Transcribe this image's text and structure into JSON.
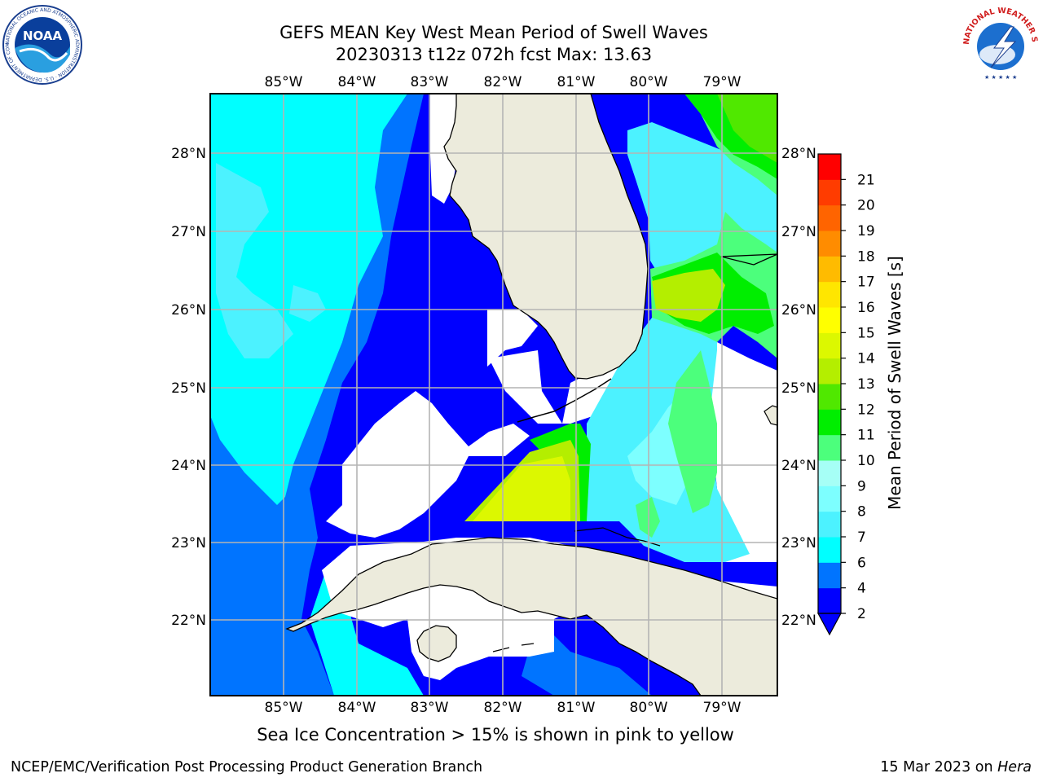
{
  "header": {
    "title_line1": "GEFS MEAN Key West Mean Period of Swell Waves",
    "title_line2": "20230313 t12z 072h fcst   Max: 13.63"
  },
  "logos": {
    "left": "NOAA",
    "left_ring": "NATIONAL OCEANIC AND ATMOSPHERIC ADMINISTRATION · U.S. DEPARTMENT OF COMMERCE ·",
    "right_ring": "NATIONAL WEATHER SERVICE"
  },
  "map": {
    "lon_labels": [
      "85°W",
      "84°W",
      "83°W",
      "82°W",
      "81°W",
      "80°W",
      "79°W"
    ],
    "lat_labels": [
      "28°N",
      "27°N",
      "26°N",
      "25°N",
      "24°N",
      "23°N",
      "22°N"
    ],
    "grid": true,
    "colors": {
      "land": "#ecebdc",
      "coast": "#000000",
      "grid": "#b4b4b4",
      "missing": "#ffffff"
    }
  },
  "colorbar": {
    "title": "Mean Period of Swell Waves [s]",
    "ticks": [
      "2",
      "4",
      "6",
      "7",
      "8",
      "9",
      "10",
      "11",
      "12",
      "13",
      "14",
      "15",
      "16",
      "17",
      "18",
      "19",
      "20",
      "21"
    ],
    "levels": [
      {
        "color": "#0000ff"
      },
      {
        "color": "#0074ff"
      },
      {
        "color": "#00ffff"
      },
      {
        "color": "#4cf2ff"
      },
      {
        "color": "#7dffff"
      },
      {
        "color": "#a6fff6"
      },
      {
        "color": "#4cff7c"
      },
      {
        "color": "#00ee00"
      },
      {
        "color": "#50e800"
      },
      {
        "color": "#b4ee00"
      },
      {
        "color": "#dcf800"
      },
      {
        "color": "#ffff00"
      },
      {
        "color": "#ffe600"
      },
      {
        "color": "#ffbb00"
      },
      {
        "color": "#ff8c00"
      },
      {
        "color": "#ff6400"
      },
      {
        "color": "#ff3c00"
      },
      {
        "color": "#ff0000"
      }
    ]
  },
  "footer": {
    "note": "Sea Ice Concentration > 15% is shown in pink to yellow",
    "credit": "NCEP/EMC/Verification Post Processing Product Generation Branch",
    "date": "15 Mar 2023 on",
    "machine": "Hera"
  }
}
